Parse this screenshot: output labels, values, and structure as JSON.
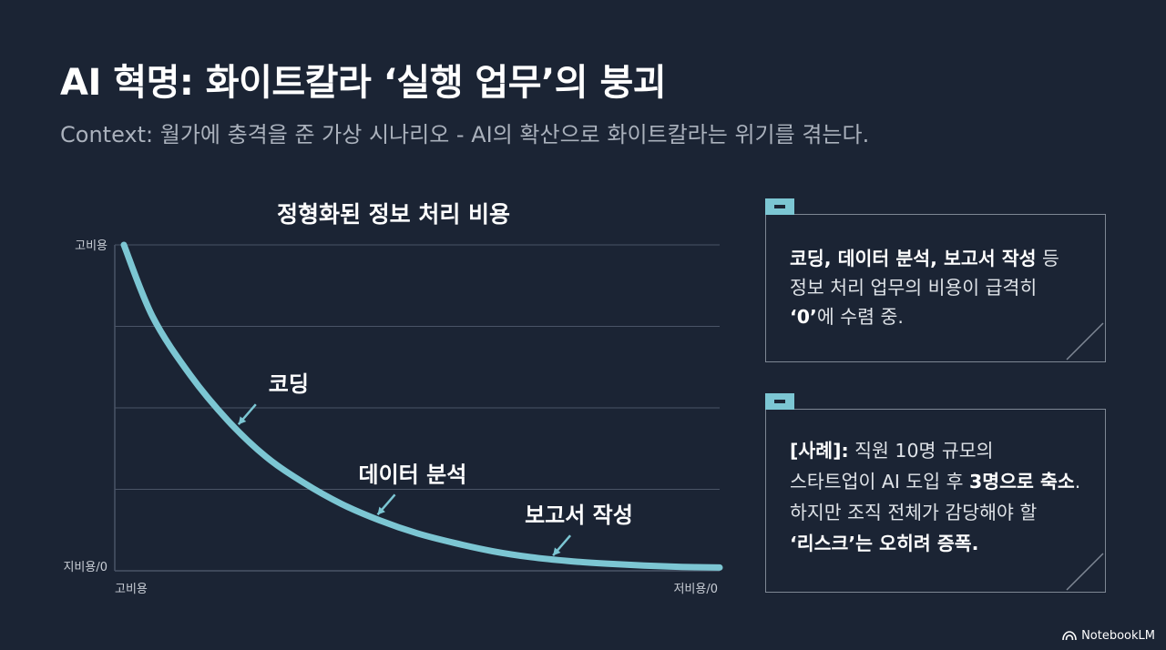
{
  "slide": {
    "title": "AI 혁명: 화이트칼라 ‘실행 업무’의 붕괴",
    "subtitle": "Context: 월가에 충격을 준 가상 시나리오 - AI의 확산으로 화이트칼라는 위기를 겪는다."
  },
  "chart_data": {
    "type": "line",
    "title": "정형화된 정보 처리 비용",
    "y_tick_labels": [
      "고비용",
      "지비용/0"
    ],
    "x_tick_labels": [
      "고비용",
      "저비용/0"
    ],
    "series": [
      {
        "values": [
          1.0,
          0.78,
          0.6,
          0.46,
          0.35,
          0.27,
          0.205,
          0.155,
          0.115,
          0.085,
          0.06,
          0.042,
          0.03,
          0.022,
          0.016,
          0.012,
          0.01
        ]
      }
    ],
    "annotations": [
      {
        "label": "코딩",
        "at": 0.2
      },
      {
        "label": "데이터 분석",
        "at": 0.43
      },
      {
        "label": "보고서 작성",
        "at": 0.72
      }
    ],
    "ylim": [
      0,
      1
    ],
    "xlim": [
      0,
      1
    ],
    "grid": true,
    "colors": {
      "line": "#7cc6d3",
      "grid": "#4a5466",
      "text": "#ffffff",
      "tick": "#c9ced6"
    }
  },
  "cards": [
    {
      "lines": [
        [
          {
            "text": "코딩, 데이터 분석, 보고서 작성",
            "bold": true
          },
          {
            "text": " 등"
          }
        ],
        [
          {
            "text": "정보 처리 업무의 비용이 급격히"
          }
        ],
        [
          {
            "text": "‘0’",
            "bold": true
          },
          {
            "text": "에 수렴 중."
          }
        ]
      ]
    },
    {
      "lines": [
        [
          {
            "text": "[사례]:",
            "bold": true
          },
          {
            "text": " 직원 10명 규모의"
          }
        ],
        [
          {
            "text": "스타트업이 AI 도입 후 "
          },
          {
            "text": "3명으로 축소",
            "bold": true
          },
          {
            "text": "."
          }
        ],
        [
          {
            "text": "하지만 조직 전체가 감당해야 할"
          }
        ],
        [
          {
            "text": "‘리스크’는 오히려 증폭.",
            "bold": true
          }
        ]
      ]
    }
  ],
  "brand": {
    "label": "NotebookLM"
  }
}
